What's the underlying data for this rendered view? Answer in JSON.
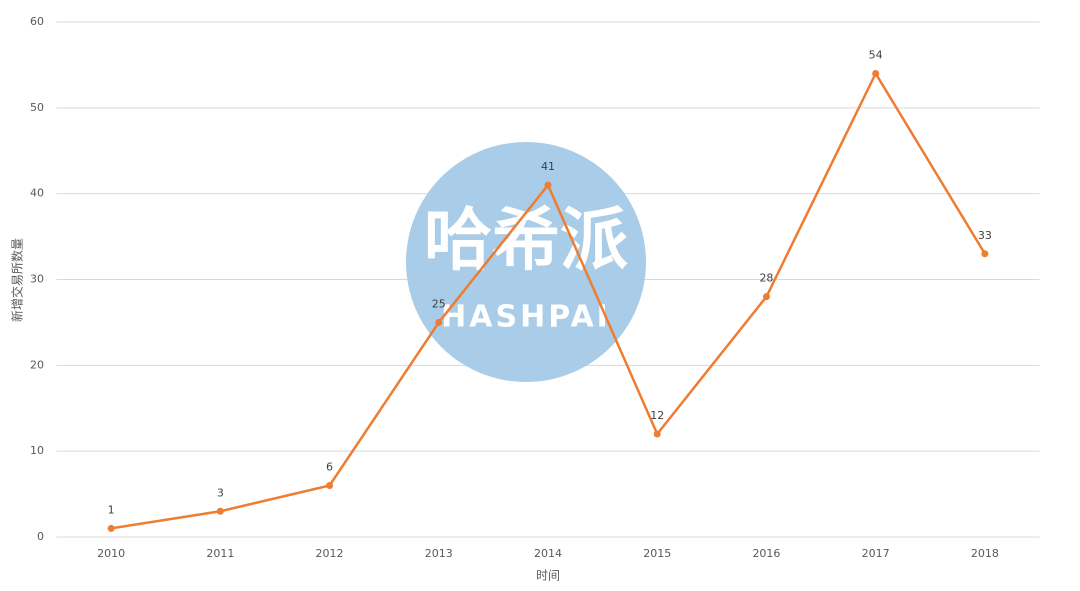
{
  "chart_data": {
    "type": "line",
    "x_label": "时间",
    "y_label": "新增交易所数量",
    "categories": [
      "2010",
      "2011",
      "2012",
      "2013",
      "2014",
      "2015",
      "2016",
      "2017",
      "2018"
    ],
    "series": [
      {
        "name": "新增交易所数量",
        "color": "#ed7d31",
        "values": [
          1,
          3,
          6,
          25,
          41,
          12,
          28,
          54,
          33
        ]
      }
    ],
    "ylim": [
      0,
      60
    ],
    "yticks": [
      0,
      10,
      20,
      30,
      40,
      50,
      60
    ],
    "grid": true,
    "watermark": {
      "text": "哈希派",
      "subtext": "HASHPAI"
    }
  }
}
